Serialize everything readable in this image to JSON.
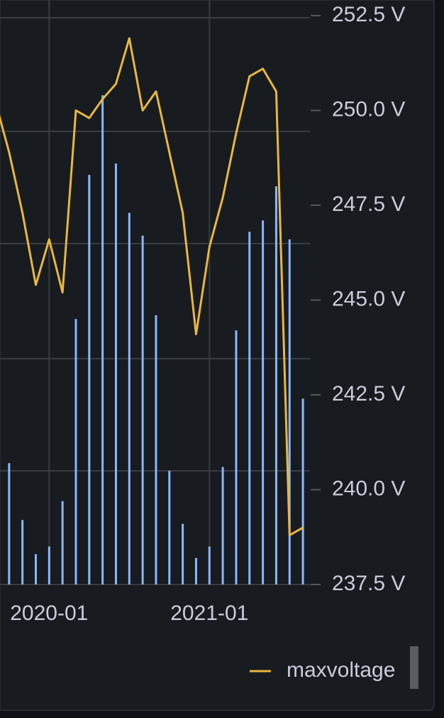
{
  "chart_data": {
    "type": "bar-line",
    "categories": [
      null,
      null,
      null,
      null,
      "2020-01",
      null,
      null,
      null,
      null,
      null,
      null,
      null,
      null,
      null,
      null,
      null,
      "2021-01",
      null,
      null,
      null,
      null,
      null,
      null,
      null
    ],
    "series": [
      {
        "type": "bar",
        "color": "#8ab8ff",
        "values": [
          null,
          240.7,
          239.2,
          238.3,
          238.5,
          239.7,
          244.5,
          248.3,
          250.4,
          248.6,
          247.3,
          246.7,
          244.6,
          240.5,
          239.1,
          238.2,
          238.5,
          240.6,
          244.2,
          246.8,
          247.1,
          248.0,
          246.6,
          242.4
        ]
      },
      {
        "type": "line",
        "name": "maxvoltage",
        "color": "#e8b73f",
        "values": [
          250.2,
          248.9,
          247.3,
          245.4,
          246.6,
          245.2,
          250.0,
          249.8,
          250.3,
          250.7,
          251.9,
          250.0,
          250.5,
          248.9,
          247.3,
          244.1,
          246.4,
          247.7,
          249.4,
          250.9,
          251.1,
          250.5,
          238.8,
          239.0
        ]
      }
    ],
    "ylim": [
      237.5,
      252.5
    ],
    "yticks": [
      {
        "value": 237.5,
        "label": "237.5 V"
      },
      {
        "value": 240.0,
        "label": "240.0 V"
      },
      {
        "value": 242.5,
        "label": "242.5 V"
      },
      {
        "value": 245.0,
        "label": "245.0 V"
      },
      {
        "value": 247.5,
        "label": "247.5 V"
      },
      {
        "value": 250.0,
        "label": "250.0 V"
      },
      {
        "value": 252.5,
        "label": "252.5 V"
      }
    ],
    "y_axis_side": "right"
  }
}
